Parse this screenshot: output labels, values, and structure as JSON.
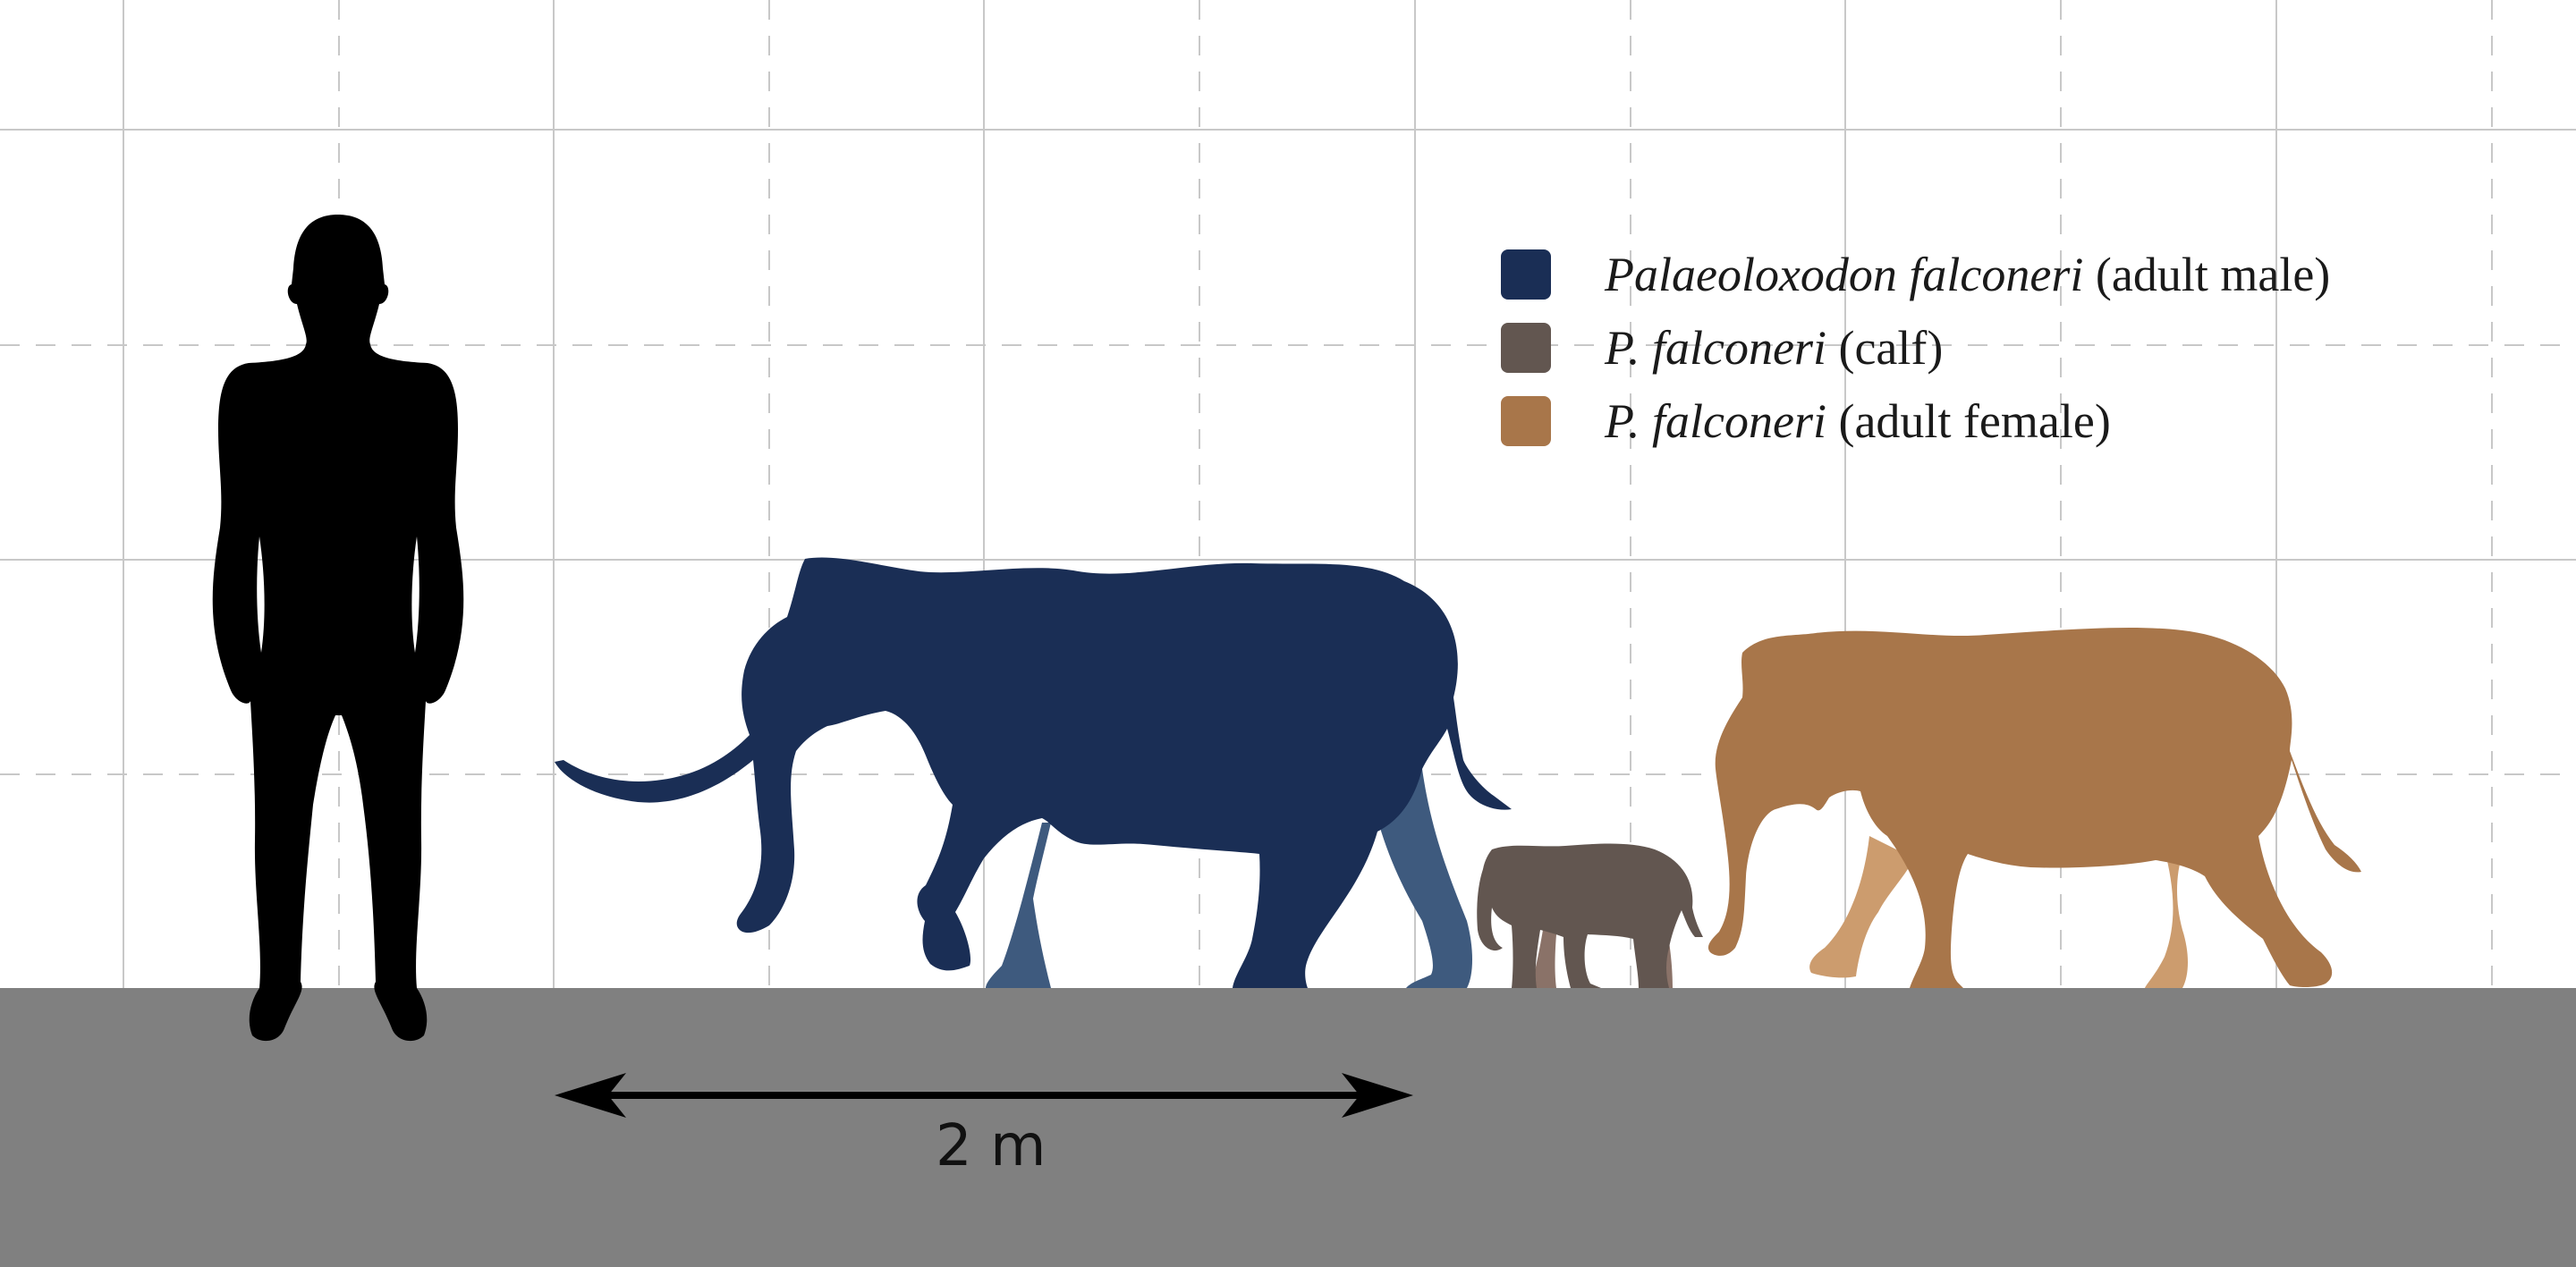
{
  "legend": [
    {
      "name_italic": "Palaeoloxodon falconeri",
      "name_plain": "(adult male)",
      "color": "#1a2e55"
    },
    {
      "name_italic": "P. falconeri",
      "name_plain": "(calf)",
      "color": "#625650"
    },
    {
      "name_italic": "P. falconeri",
      "name_plain": "(adult female)",
      "color": "#a8764a"
    }
  ],
  "scale_bar": {
    "label": "2 m"
  },
  "colors": {
    "human": "#000000",
    "ground": "#808080",
    "grid": "#c8c8c8",
    "male_body": "#1a2e55",
    "male_far_legs": "#3e5a7e",
    "calf_body": "#625650",
    "calf_far_legs": "#8a7268",
    "female_body": "#a8764a",
    "female_far_legs": "#cc9c6e"
  },
  "icons": [
    "human-silhouette",
    "elephant-adult-male-silhouette",
    "elephant-calf-silhouette",
    "elephant-adult-female-silhouette",
    "double-arrow"
  ]
}
